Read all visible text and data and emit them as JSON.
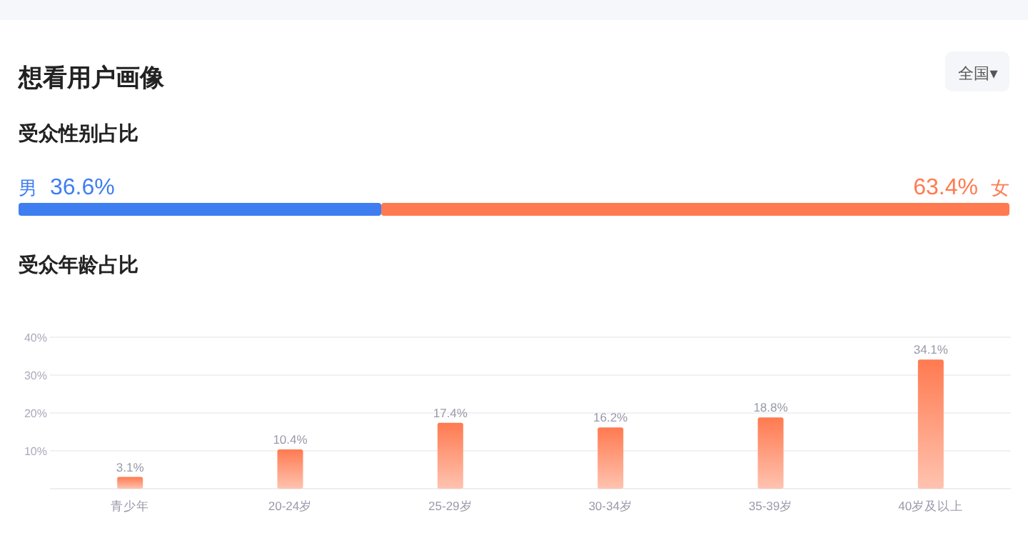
{
  "chart_data": [
    {
      "type": "bar",
      "orientation": "horizontal",
      "stacked": true,
      "title": "受众性别占比",
      "annotations": [
        "想看用户画像",
        "全国▾"
      ],
      "categories": [
        null
      ],
      "xlim": [
        0,
        100
      ],
      "series": [
        {
          "name": "男",
          "color": "#3f7ef0",
          "values": [
            36.6
          ],
          "value_labels": [
            "36.6%"
          ]
        },
        {
          "name": "女",
          "color": "#ff7a50",
          "values": [
            63.4
          ],
          "value_labels": [
            "63.4%"
          ]
        }
      ]
    },
    {
      "type": "bar",
      "title": "受众年龄占比",
      "categories": [
        "青少年",
        "20-24岁",
        "25-29岁",
        "30-34岁",
        "35-39岁",
        "40岁及以上"
      ],
      "values": [
        3.1,
        10.4,
        17.4,
        16.2,
        18.8,
        34.1
      ],
      "value_labels": [
        "3.1%",
        "10.4%",
        "17.4%",
        "16.2%",
        "18.8%",
        "34.1%"
      ],
      "color": "#ff7a50",
      "ylim": [
        0,
        40
      ],
      "yticks": [
        {
          "value": 10,
          "label": "10%"
        },
        {
          "value": 20,
          "label": "20%"
        },
        {
          "value": 30,
          "label": "30%"
        },
        {
          "value": 40,
          "label": "40%"
        }
      ],
      "grid": "y"
    }
  ]
}
